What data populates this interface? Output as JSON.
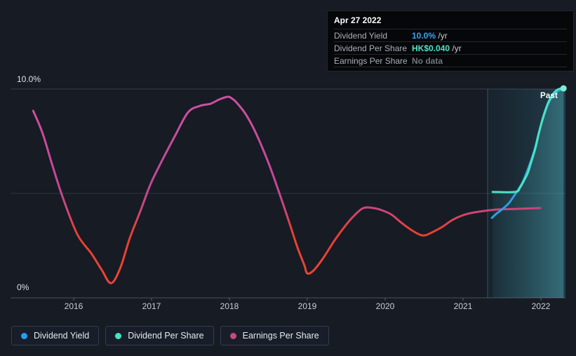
{
  "tooltip": {
    "date": "Apr 27 2022",
    "rows": [
      {
        "label": "Dividend Yield",
        "value": "10.0%",
        "suffix": " /yr",
        "value_color": "#3ba3f5"
      },
      {
        "label": "Dividend Per Share",
        "value": "HK$0.040",
        "suffix": " /yr",
        "value_color": "#4fe3c8"
      },
      {
        "label": "Earnings Per Share",
        "value": "No data",
        "suffix": "",
        "value_color": "#70767f"
      }
    ]
  },
  "y_axis": {
    "top_label": "10.0%",
    "bottom_label": "0%"
  },
  "past_label": "Past",
  "legend": [
    {
      "label": "Dividend Yield",
      "color": "#249ff0"
    },
    {
      "label": "Dividend Per Share",
      "color": "#43e4c5"
    },
    {
      "label": "Earnings Per Share",
      "color": "#c9487f"
    }
  ],
  "colors": {
    "background": "#161b24",
    "grid_top": "#39414c",
    "grid_mid": "#2d3540",
    "axis": "#4b525c",
    "tick": "#5a6069",
    "eps_top": "#d14fa4",
    "eps_mid": "#c24795",
    "eps_blend": "#c94678",
    "eps_red": "#e73f31",
    "eps_red_deep": "#ee4636",
    "dy_blue": "#2d9fe6",
    "dps_teal": "#49e2c5",
    "end_dot": "#7deed6",
    "past_fill_left": "rgba(56,160,190,0.06)",
    "past_fill_right": "rgba(80,200,225,0.20)",
    "area_left": "rgba(70,190,200,0.05)",
    "area_right": "rgba(95,220,230,0.30)",
    "past_boundary": "rgba(150,220,235,0.28)"
  },
  "chart_data": {
    "type": "line",
    "title": "Dividend history chart",
    "x_axis": {
      "ticks": [
        2016,
        2017,
        2018,
        2019,
        2020,
        2021,
        2022
      ],
      "range": [
        2015.35,
        2022.35
      ]
    },
    "y_axis": {
      "unit": "%",
      "range": [
        0,
        10
      ],
      "gridlines": [
        0,
        5,
        10
      ],
      "top_label": "10.0%",
      "bottom_label": "0%"
    },
    "legend_position": "bottom-left",
    "past_region_start": 2021.315,
    "past_region_end": 2022.31,
    "series": [
      {
        "name": "Dividend Yield",
        "unit": "% /yr",
        "color": "#2d9fe6",
        "points": [
          [
            2021.37,
            3.83
          ],
          [
            2021.43,
            4.03
          ],
          [
            2021.5,
            4.23
          ],
          [
            2021.58,
            4.5
          ],
          [
            2021.64,
            4.8
          ],
          [
            2021.7,
            5.13
          ],
          [
            2021.76,
            5.5
          ],
          [
            2021.81,
            5.94
          ],
          [
            2021.86,
            6.44
          ],
          [
            2021.92,
            7.11
          ],
          [
            2021.97,
            7.85
          ],
          [
            2022.03,
            8.62
          ],
          [
            2022.09,
            9.26
          ],
          [
            2022.16,
            9.7
          ],
          [
            2022.23,
            9.93
          ],
          [
            2022.31,
            10.0
          ]
        ]
      },
      {
        "name": "Dividend Per Share",
        "unit": "HK$/yr plotted on % scale (ends at HK$0.040 = 10)",
        "color": "#49e2c5",
        "end_marker": true,
        "points": [
          [
            2021.38,
            5.07
          ],
          [
            2021.67,
            5.07
          ],
          [
            2021.73,
            5.27
          ],
          [
            2021.78,
            5.6
          ],
          [
            2021.83,
            5.97
          ],
          [
            2021.87,
            6.44
          ],
          [
            2021.93,
            7.18
          ],
          [
            2021.98,
            7.99
          ],
          [
            2022.04,
            8.79
          ],
          [
            2022.1,
            9.4
          ],
          [
            2022.17,
            9.83
          ],
          [
            2022.23,
            10.0
          ],
          [
            2022.29,
            10.03
          ]
        ]
      },
      {
        "name": "Earnings Per Share",
        "unit": "plotted on % scale; red where low",
        "color": "#c24795",
        "color_low": "#e73f31",
        "points": [
          [
            2015.48,
            8.96
          ],
          [
            2015.6,
            7.89
          ],
          [
            2015.73,
            6.31
          ],
          [
            2015.87,
            4.7
          ],
          [
            2016.05,
            3.02
          ],
          [
            2016.23,
            2.11
          ],
          [
            2016.36,
            1.34
          ],
          [
            2016.48,
            0.7
          ],
          [
            2016.6,
            1.44
          ],
          [
            2016.72,
            2.85
          ],
          [
            2016.86,
            4.19
          ],
          [
            2016.99,
            5.47
          ],
          [
            2017.14,
            6.61
          ],
          [
            2017.31,
            7.82
          ],
          [
            2017.47,
            8.89
          ],
          [
            2017.62,
            9.19
          ],
          [
            2017.76,
            9.3
          ],
          [
            2017.87,
            9.5
          ],
          [
            2017.98,
            9.63
          ],
          [
            2018.03,
            9.55
          ],
          [
            2018.09,
            9.36
          ],
          [
            2018.21,
            8.79
          ],
          [
            2018.34,
            7.89
          ],
          [
            2018.5,
            6.48
          ],
          [
            2018.64,
            5.03
          ],
          [
            2018.77,
            3.59
          ],
          [
            2018.87,
            2.45
          ],
          [
            2018.96,
            1.58
          ],
          [
            2019.0,
            1.17
          ],
          [
            2019.08,
            1.31
          ],
          [
            2019.2,
            1.88
          ],
          [
            2019.35,
            2.75
          ],
          [
            2019.49,
            3.46
          ],
          [
            2019.6,
            3.93
          ],
          [
            2019.72,
            4.3
          ],
          [
            2019.85,
            4.3
          ],
          [
            2019.96,
            4.19
          ],
          [
            2020.08,
            3.99
          ],
          [
            2020.2,
            3.62
          ],
          [
            2020.32,
            3.29
          ],
          [
            2020.43,
            3.05
          ],
          [
            2020.51,
            2.99
          ],
          [
            2020.61,
            3.15
          ],
          [
            2020.73,
            3.39
          ],
          [
            2020.86,
            3.72
          ],
          [
            2020.98,
            3.93
          ],
          [
            2021.1,
            4.06
          ],
          [
            2021.27,
            4.16
          ],
          [
            2021.45,
            4.23
          ],
          [
            2021.68,
            4.26
          ],
          [
            2021.99,
            4.3
          ]
        ]
      }
    ]
  }
}
